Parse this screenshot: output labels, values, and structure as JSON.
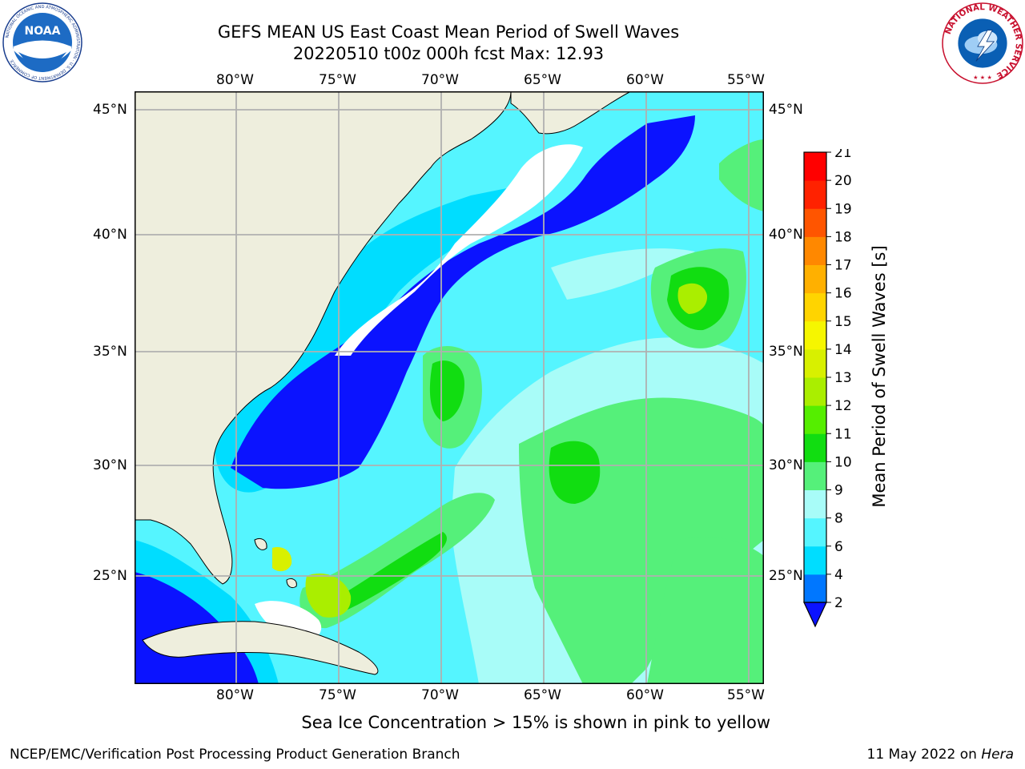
{
  "header": {
    "title_line1": "GEFS MEAN US East Coast Mean Period of Swell Waves",
    "title_line2": "20220510 t00z 000h fcst   Max: 12.93"
  },
  "logos": {
    "noaa_text": "NOAA",
    "noaa_ring_text": "NATIONAL OCEANIC AND ATMOSPHERIC ADMINISTRATION · U.S. DEPARTMENT OF COMMERCE",
    "nws_ring_text": "NATIONAL WEATHER SERVICE"
  },
  "map": {
    "lon_labels": [
      "80°W",
      "75°W",
      "70°W",
      "65°W",
      "60°W",
      "55°W"
    ],
    "lat_labels": [
      "45°N",
      "40°N",
      "35°N",
      "30°N",
      "25°N"
    ],
    "colors": {
      "land": "#eeeedd",
      "mask": "#ffffff",
      "grid": "#b0b0b0",
      "coast": "#000000"
    }
  },
  "colorbar": {
    "label": "Mean Period of Swell Waves [s]",
    "ticks": [
      "2",
      "4",
      "6",
      "8",
      "9",
      "10",
      "11",
      "12",
      "13",
      "14",
      "15",
      "16",
      "17",
      "18",
      "19",
      "20",
      "21"
    ],
    "colors": [
      "#0b13ff",
      "#0077ff",
      "#00ddff",
      "#55f5ff",
      "#a8fcf8",
      "#55f07a",
      "#11dd11",
      "#55ee00",
      "#aaee00",
      "#d8f000",
      "#f6f600",
      "#ffd400",
      "#ffb000",
      "#ff8800",
      "#ff5500",
      "#ff2200",
      "#ff0000"
    ]
  },
  "footer": {
    "note": "Sea Ice Concentration > 15% is shown in pink to yellow",
    "credit": "NCEP/EMC/Verification Post Processing Product Generation Branch",
    "date": "11 May 2022 on",
    "host": "Hera"
  }
}
